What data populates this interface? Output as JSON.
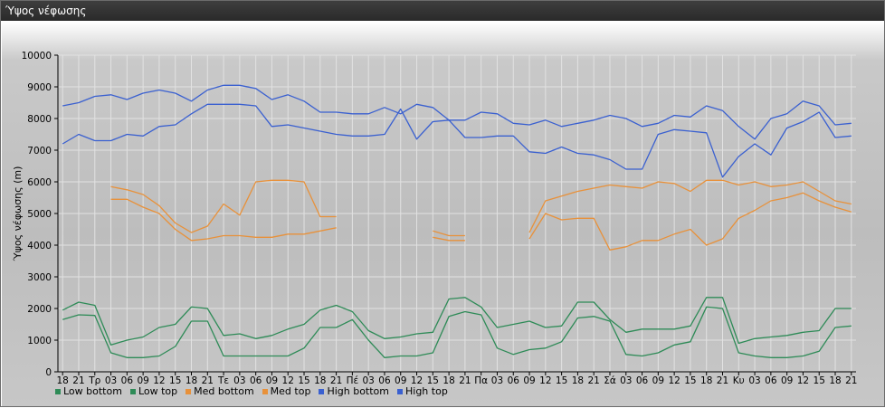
{
  "window": {
    "title": "Ύψος νέφωσης"
  },
  "chart_data": {
    "type": "line",
    "title": "",
    "xlabel": "",
    "ylabel": "Ύψος νέφωσης (m)",
    "ylim": [
      0,
      10000
    ],
    "yticks": [
      0,
      1000,
      2000,
      3000,
      4000,
      5000,
      6000,
      7000,
      8000,
      9000,
      10000
    ],
    "grid": true,
    "legend_position": "bottom-left",
    "categories": [
      "18",
      "21",
      "Τρ",
      "03",
      "06",
      "09",
      "12",
      "15",
      "18",
      "21",
      "Τε",
      "03",
      "06",
      "09",
      "12",
      "15",
      "18",
      "21",
      "Πέ",
      "03",
      "06",
      "09",
      "12",
      "15",
      "18",
      "21",
      "Πα",
      "03",
      "06",
      "09",
      "12",
      "15",
      "18",
      "21",
      "Σά",
      "03",
      "06",
      "09",
      "12",
      "15",
      "18",
      "21",
      "Κυ",
      "03",
      "06",
      "09",
      "12",
      "15",
      "18",
      "21"
    ],
    "series": [
      {
        "name": "Low bottom",
        "color": "#2e8b57",
        "values": [
          1650,
          1800,
          1780,
          600,
          450,
          450,
          500,
          800,
          1600,
          1600,
          500,
          500,
          500,
          500,
          500,
          750,
          1400,
          1400,
          1650,
          1000,
          450,
          500,
          500,
          600,
          1750,
          1900,
          1800,
          750,
          550,
          700,
          750,
          950,
          1700,
          1750,
          1600,
          550,
          500,
          600,
          850,
          950,
          2050,
          2000,
          600,
          500,
          450,
          450,
          500,
          650,
          1400,
          1450
        ]
      },
      {
        "name": "Low top",
        "color": "#2e8b57",
        "values": [
          1950,
          2200,
          2100,
          850,
          1000,
          1100,
          1400,
          1500,
          2050,
          2000,
          1150,
          1200,
          1050,
          1150,
          1350,
          1500,
          1950,
          2100,
          1900,
          1300,
          1050,
          1100,
          1200,
          1250,
          2300,
          2350,
          2050,
          1400,
          1500,
          1600,
          1400,
          1450,
          2200,
          2200,
          1650,
          1250,
          1350,
          1350,
          1350,
          1450,
          2350,
          2350,
          900,
          1050,
          1100,
          1150,
          1250,
          1300,
          2000,
          2000
        ]
      },
      {
        "name": "Med bottom",
        "color": "#e8913a",
        "values": [
          null,
          null,
          null,
          5450,
          5450,
          5200,
          5000,
          4500,
          4150,
          4200,
          4300,
          4300,
          4250,
          4250,
          4350,
          4350,
          4450,
          4550,
          null,
          null,
          null,
          null,
          null,
          4250,
          4150,
          4150,
          null,
          null,
          null,
          4200,
          5000,
          4800,
          4850,
          4850,
          3850,
          3950,
          4150,
          4150,
          4350,
          4500,
          4000,
          4200,
          4850,
          5100,
          5400,
          5500,
          5650,
          5400,
          5200,
          5050
        ]
      },
      {
        "name": "Med top",
        "color": "#e8913a",
        "values": [
          null,
          null,
          null,
          5850,
          5750,
          5600,
          5250,
          4700,
          4400,
          4600,
          5300,
          4950,
          6000,
          6050,
          6050,
          6000,
          4900,
          4900,
          null,
          null,
          null,
          null,
          null,
          4450,
          4300,
          4300,
          null,
          null,
          null,
          4400,
          5400,
          5550,
          5700,
          5800,
          5900,
          5850,
          5800,
          6000,
          5950,
          5700,
          6050,
          6050,
          5900,
          6000,
          5850,
          5900,
          6000,
          5700,
          5400,
          5300
        ]
      },
      {
        "name": "High bottom",
        "color": "#3a60d0",
        "values": [
          7200,
          7500,
          7300,
          7300,
          7500,
          7450,
          7750,
          7800,
          8150,
          8450,
          8450,
          8450,
          8400,
          7750,
          7800,
          7700,
          7600,
          7500,
          7450,
          7450,
          7500,
          8300,
          7350,
          7900,
          7950,
          7400,
          7400,
          7450,
          7450,
          6950,
          6900,
          7100,
          6900,
          6850,
          6700,
          6400,
          6400,
          7500,
          7650,
          7600,
          7550,
          6150,
          6800,
          7200,
          6850,
          7700,
          7900,
          8200,
          7400,
          7450
        ]
      },
      {
        "name": "High top",
        "color": "#3a60d0",
        "values": [
          8400,
          8500,
          8700,
          8750,
          8600,
          8800,
          8900,
          8800,
          8550,
          8900,
          9050,
          9050,
          8950,
          8600,
          8750,
          8550,
          8200,
          8200,
          8150,
          8150,
          8350,
          8150,
          8450,
          8350,
          7950,
          7950,
          8200,
          8150,
          7850,
          7800,
          7950,
          7750,
          7850,
          7950,
          8100,
          8000,
          7750,
          7850,
          8100,
          8050,
          8400,
          8250,
          7750,
          7350,
          8000,
          8150,
          8550,
          8400,
          7800,
          7850
        ]
      }
    ]
  }
}
